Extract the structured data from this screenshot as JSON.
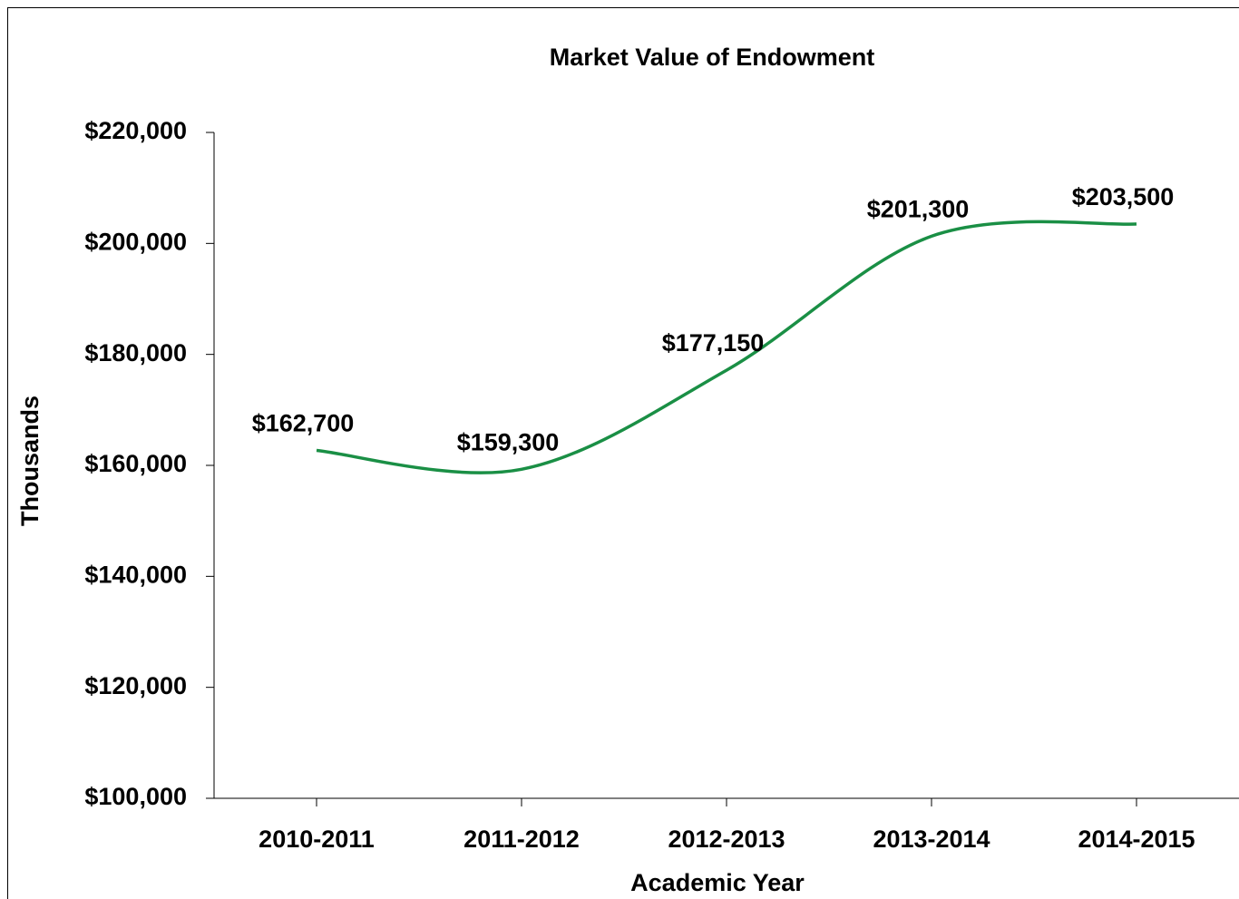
{
  "chart_data": {
    "type": "line",
    "title": "Market Value of Endowment",
    "x_label": "Academic Year",
    "y_label": "Thousands",
    "categories": [
      "2010-2011",
      "2011-2012",
      "2012-2013",
      "2013-2014",
      "2014-2015"
    ],
    "series": [
      {
        "name": "Market Value",
        "color": "#1a8f45",
        "values": [
          162700,
          159300,
          177150,
          201300,
          203500
        ],
        "value_labels": [
          "$162,700",
          "$159,300",
          "$177,150",
          "$201,300",
          "$203,500"
        ]
      }
    ],
    "ylim": [
      100000,
      220000
    ],
    "yticks": [
      {
        "value": 100000,
        "label": "$100,000"
      },
      {
        "value": 120000,
        "label": "$120,000"
      },
      {
        "value": 140000,
        "label": "$140,000"
      },
      {
        "value": 160000,
        "label": "$160,000"
      },
      {
        "value": 180000,
        "label": "$180,000"
      },
      {
        "value": 200000,
        "label": "$200,000"
      },
      {
        "value": 220000,
        "label": "$220,000"
      }
    ],
    "smooth": true,
    "grid": false
  }
}
